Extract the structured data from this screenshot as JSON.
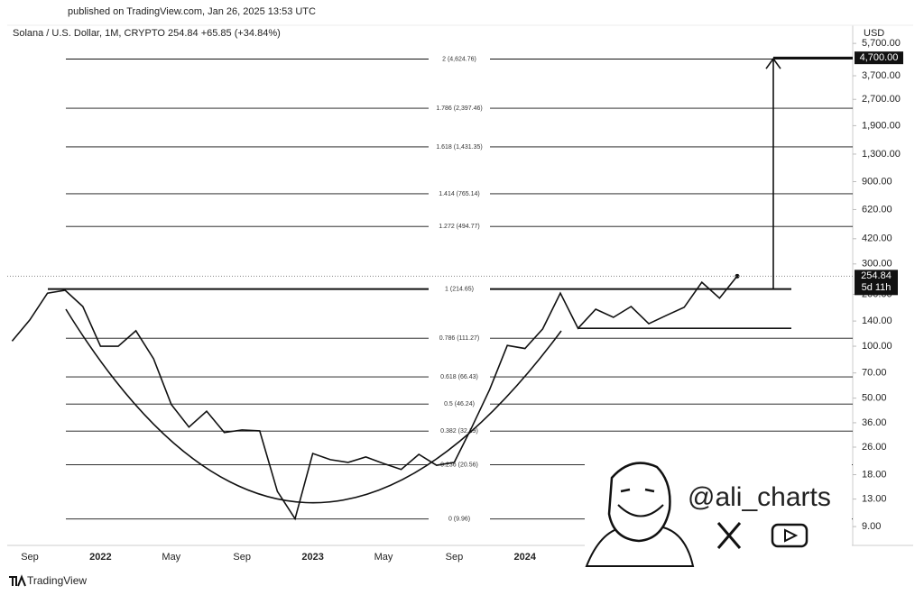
{
  "chart_data": {
    "type": "line",
    "title": "published on TradingView.com, Jan 26, 2025 13:53 UTC",
    "subtitle": "Solana / U.S. Dollar, 1M, CRYPTO  254.84  +65.85 (+34.84%)",
    "currency": "USD",
    "source": "TradingView",
    "watermark": "@ali_charts",
    "log_scale": true,
    "ylim": [
      7,
      7090
    ],
    "yticks": [
      {
        "value": 5700,
        "label": "5,700.00"
      },
      {
        "value": 3700,
        "label": "3,700.00"
      },
      {
        "value": 2700,
        "label": "2,700.00"
      },
      {
        "value": 1900,
        "label": "1,900.00"
      },
      {
        "value": 1300,
        "label": "1,300.00"
      },
      {
        "value": 900,
        "label": "900.00"
      },
      {
        "value": 620,
        "label": "620.00"
      },
      {
        "value": 420,
        "label": "420.00"
      },
      {
        "value": 300,
        "label": "300.00"
      },
      {
        "value": 200,
        "label": "200.00"
      },
      {
        "value": 140,
        "label": "140.00"
      },
      {
        "value": 100,
        "label": "100.00"
      },
      {
        "value": 70,
        "label": "70.00"
      },
      {
        "value": 50,
        "label": "50.00"
      },
      {
        "value": 36,
        "label": "36.00"
      },
      {
        "value": 26,
        "label": "26.00"
      },
      {
        "value": 18,
        "label": "18.00"
      },
      {
        "value": 13,
        "label": "13.00"
      },
      {
        "value": 9,
        "label": "9.00"
      }
    ],
    "categories": [
      null,
      "Sep",
      null,
      null,
      null,
      "2022",
      null,
      null,
      null,
      "May",
      null,
      null,
      null,
      "Sep",
      null,
      null,
      null,
      "2023",
      null,
      null,
      null,
      "May",
      null,
      null,
      null,
      "Sep",
      null,
      null,
      null,
      "2024",
      null,
      null,
      null,
      null,
      null,
      null,
      null,
      null,
      null,
      null,
      null,
      null
    ],
    "series": [
      {
        "name": "Solana / U.S. Dollar",
        "color": "#111111",
        "values": [
          107,
          142,
          203,
          211,
          170,
          100,
          100,
          123,
          84.5,
          46,
          34,
          42,
          31.6,
          32.7,
          32.3,
          14.4,
          10.0,
          23.9,
          22,
          21.2,
          22.8,
          20.9,
          19.3,
          23.6,
          20.4,
          21.2,
          34,
          56,
          101,
          97,
          126,
          203,
          127,
          164,
          147,
          170,
          135,
          151,
          168,
          235,
          190,
          254.84
        ]
      }
    ],
    "fib_levels": [
      {
        "value": 4624.76,
        "label": "2 (4,624.76)"
      },
      {
        "value": 2397.46,
        "label": "1.786 (2,397.46)"
      },
      {
        "value": 1431.35,
        "label": "1.618 (1,431.35)"
      },
      {
        "value": 765.14,
        "label": "1.414 (765.14)"
      },
      {
        "value": 494.77,
        "label": "1.272 (494.77)"
      },
      {
        "value": 214.65,
        "label": "1 (214.65)"
      },
      {
        "value": 111.27,
        "label": "0.786 (111.27)"
      },
      {
        "value": 66.43,
        "label": "0.618 (66.43)"
      },
      {
        "value": 46.24,
        "label": "0.5 (46.24)"
      },
      {
        "value": 32.19,
        "label": "0.382 (32.19)"
      },
      {
        "value": 20.56,
        "label": "0.236 (20.56)"
      },
      {
        "value": 9.96,
        "label": "0 (9.96)"
      }
    ],
    "handle_low": 127,
    "target": {
      "value": 4700,
      "label": "4,700.00"
    },
    "price_tag": {
      "value": 254.84,
      "label": "254.84"
    },
    "countdown": "5d 11h"
  }
}
